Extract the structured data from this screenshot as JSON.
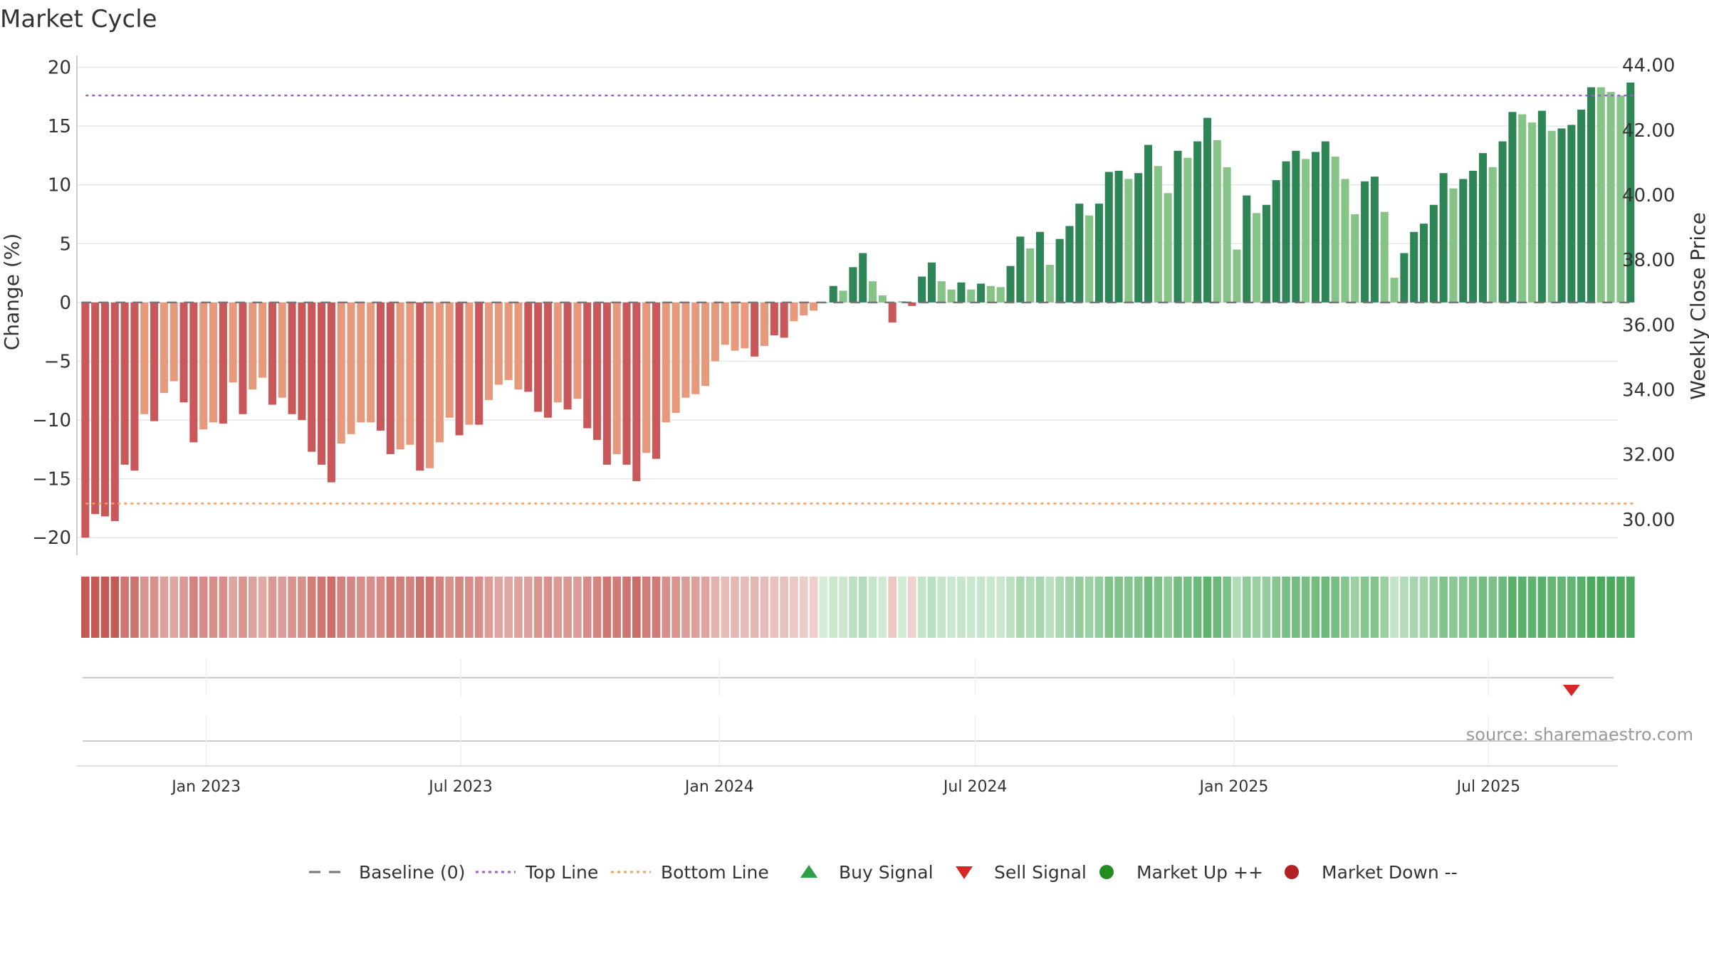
{
  "title": "Market Cycle",
  "source": "source: sharemaestro.com",
  "y_left_label": "Change (%)",
  "y_right_label": "Weekly Close Price",
  "y_left_ticks": [
    "20",
    "15",
    "10",
    "5",
    "0",
    "−5",
    "−10",
    "−15",
    "−20"
  ],
  "y_right_ticks": [
    "44.00",
    "42.00",
    "40.00",
    "38.00",
    "36.00",
    "34.00",
    "32.00",
    "30.00"
  ],
  "x_ticks": [
    "Jan 2023",
    "Jul 2023",
    "Jan 2024",
    "Jul 2024",
    "Jan 2025",
    "Jul 2025"
  ],
  "legend": [
    {
      "label": "Baseline (0)",
      "icon": "dash-line",
      "color": "#777777"
    },
    {
      "label": "Top Line",
      "icon": "dotted-line",
      "color": "#9b5fd1"
    },
    {
      "label": "Bottom Line",
      "icon": "dotted-line",
      "color": "#f0a060"
    },
    {
      "label": "Buy Signal",
      "icon": "triangle-up",
      "color": "#2e9e4a"
    },
    {
      "label": "Sell Signal",
      "icon": "triangle-down",
      "color": "#d62828"
    },
    {
      "label": "Market Up ++",
      "icon": "circle",
      "color": "#228b22"
    },
    {
      "label": "Market Down --",
      "icon": "circle",
      "color": "#b22222"
    }
  ],
  "colors": {
    "down_strong": "#c8585a",
    "down_light": "#e69a7b",
    "up_strong": "#2e8555",
    "up_light": "#85c486",
    "top_line": "#9b5fd1",
    "bottom_line": "#f0a060",
    "sell_signal": "#d62828"
  },
  "chart_data": {
    "type": "bar",
    "x_range": [
      "2022-10-01",
      "2025-10-01"
    ],
    "ylim_left": [
      -21.5,
      21
    ],
    "ylim_right": [
      28.9,
      44.3
    ],
    "top_line": 17.6,
    "bottom_line": -17.1,
    "series": [
      {
        "name": "Change (%)",
        "start_date": "2022-10-07",
        "interval_days": 7,
        "values": [
          -20,
          -18,
          -18.2,
          -18.6,
          -13.8,
          -14.3,
          -9.5,
          -10.1,
          -7.7,
          -6.7,
          -8.5,
          -11.9,
          -10.8,
          -10.2,
          -10.3,
          -6.8,
          -9.5,
          -7.4,
          -6.4,
          -8.7,
          -8.1,
          -9.5,
          -10,
          -12.7,
          -13.8,
          -15.3,
          -12,
          -11.2,
          -10.2,
          -10.2,
          -10.9,
          -12.9,
          -12.5,
          -12.1,
          -14.3,
          -14.1,
          -11.9,
          -9.8,
          -11.3,
          -10.4,
          -10.4,
          -8.3,
          -7,
          -6.6,
          -7.4,
          -7.6,
          -9.3,
          -9.8,
          -8.5,
          -9.1,
          -8.2,
          -10.7,
          -11.7,
          -13.8,
          -12.9,
          -13.8,
          -15.2,
          -12.8,
          -13.3,
          -10.2,
          -9.4,
          -8.1,
          -7.8,
          -7.1,
          -5,
          -3.6,
          -4.1,
          -3.9,
          -4.6,
          -3.7,
          -2.8,
          -3,
          -1.6,
          -1.1,
          -0.7,
          0,
          1.4,
          1,
          3,
          4.2,
          1.8,
          0.6,
          -1.7,
          0.1,
          -0.3,
          2.2,
          3.4,
          1.8,
          1.1,
          1.7,
          1.1,
          1.6,
          1.4,
          1.3,
          3.1,
          5.6,
          4.6,
          6,
          3.2,
          5.4,
          6.5,
          8.4,
          7.4,
          8.4,
          11.1,
          11.2,
          10.5,
          11,
          13.4,
          11.6,
          9.3,
          12.9,
          12.3,
          13.7,
          15.7,
          13.8,
          11.5,
          4.5,
          9.1,
          7.6,
          8.3,
          10.4,
          12,
          12.9,
          12.2,
          12.8,
          13.7,
          12.4,
          10.5,
          7.5,
          10.3,
          10.7,
          7.7,
          2.1,
          4.2,
          6,
          6.7,
          8.3,
          11,
          9.7,
          10.5,
          11.2,
          12.7,
          11.5,
          13.7,
          16.2,
          16,
          15.3,
          16.3,
          14.6,
          14.8,
          15.1,
          16.4,
          18.3,
          18.3,
          17.9,
          17.6,
          18.7
        ],
        "strong_flags": [
          1,
          1,
          1,
          1,
          1,
          1,
          0,
          1,
          0,
          0,
          1,
          1,
          0,
          0,
          1,
          0,
          1,
          0,
          0,
          1,
          0,
          1,
          1,
          1,
          1,
          1,
          0,
          0,
          0,
          0,
          1,
          1,
          0,
          0,
          1,
          0,
          0,
          0,
          1,
          0,
          1,
          0,
          0,
          0,
          0,
          1,
          1,
          1,
          0,
          1,
          0,
          1,
          1,
          1,
          0,
          1,
          1,
          0,
          1,
          0,
          0,
          0,
          0,
          0,
          0,
          0,
          0,
          0,
          1,
          0,
          1,
          1,
          0,
          0,
          0,
          0,
          1,
          0,
          1,
          1,
          0,
          0,
          1,
          0,
          1,
          1,
          1,
          0,
          0,
          1,
          0,
          1,
          0,
          0,
          1,
          1,
          0,
          1,
          0,
          1,
          1,
          1,
          0,
          1,
          1,
          1,
          0,
          1,
          1,
          0,
          0,
          1,
          0,
          1,
          1,
          0,
          0,
          0,
          1,
          0,
          1,
          1,
          1,
          1,
          0,
          1,
          1,
          0,
          0,
          0,
          1,
          1,
          0,
          0,
          1,
          1,
          1,
          1,
          1,
          0,
          1,
          1,
          1,
          0,
          1,
          1,
          0,
          0,
          1,
          0,
          1,
          1,
          1,
          1,
          0,
          0,
          0,
          1
        ]
      }
    ],
    "sell_signals": [
      "2025-08-29"
    ],
    "buy_signals": []
  }
}
